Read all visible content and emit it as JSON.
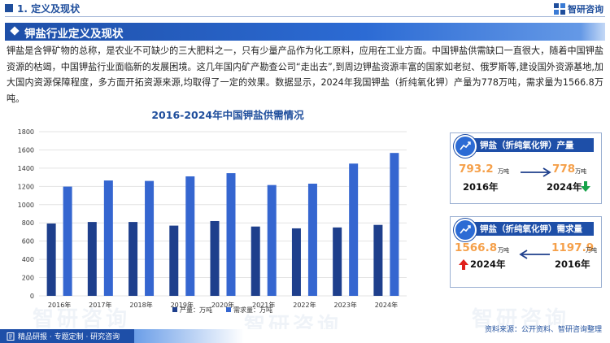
{
  "header": {
    "section_number_title": "1. 定义及现状",
    "brand_name": "智研咨询"
  },
  "section": {
    "title": "钾盐行业定义及现状"
  },
  "paragraph": "钾盐是含钾矿物的总称，是农业不可缺少的三大肥料之一，只有少量产品作为化工原料，应用在工业方面。中国钾盐供需缺口一直很大，随着中国钾盐资源的枯竭，中国钾盐行业面临新的发展困境。这几年国内矿产勘查公司“走出去”,到周边钾盐资源丰富的国家如老挝、俄罗斯等,建设国外资源基地,加大国内资源保障程度，多方面开拓资源来源,均取得了一定的效果。数据显示，2024年我国钾盐（折纯氧化钾）产量为778万吨，需求量为1566.8万吨。",
  "chart_data": {
    "type": "bar",
    "title": "2016-2024年中国钾盐供需情况",
    "categories": [
      "2016年",
      "2017年",
      "2018年",
      "2019年",
      "2020年",
      "2021年",
      "2022年",
      "2023年",
      "2024年"
    ],
    "series": [
      {
        "name": "产量：万吨",
        "color": "#1e3f8c",
        "values": [
          793.2,
          810,
          810,
          770,
          820,
          760,
          740,
          750,
          778
        ]
      },
      {
        "name": "需求量：万吨",
        "color": "#3566d0",
        "values": [
          1197.9,
          1265,
          1260,
          1310,
          1345,
          1215,
          1230,
          1450,
          1566.8
        ]
      }
    ],
    "yticks": [
      "0",
      "200",
      "400",
      "600",
      "800",
      "1000",
      "1200",
      "1400",
      "1600",
      "1800"
    ],
    "ylim": [
      0,
      1800
    ],
    "grid": true,
    "legend": "bottom-center"
  },
  "cards": {
    "production": {
      "title": "钾盐（折纯氧化钾）产量",
      "value_a": "793.2",
      "unit_a": "万吨",
      "year_a": "2016年",
      "value_b": "778",
      "unit_b": "万吨",
      "year_b": "2024年",
      "trend": "down",
      "trend_color": "#17a34a"
    },
    "demand": {
      "title": "钾盐（折纯氧化钾）需求量",
      "value_a": "1566.8",
      "unit_a": "万吨",
      "year_a": "2024年",
      "value_b": "1197.9",
      "unit_b": "万吨",
      "year_b": "2016年",
      "trend": "up",
      "trend_color": "#e0201c"
    }
  },
  "footer": {
    "tabs_text": "精品研报 · 专题定制 · 研究咨询",
    "source": "资料来源：公开资料、智研咨询整理"
  },
  "watermark": "智研咨询",
  "colors": {
    "brand_blue": "#1f4e9c",
    "accent_orange": "#f5a04a"
  }
}
